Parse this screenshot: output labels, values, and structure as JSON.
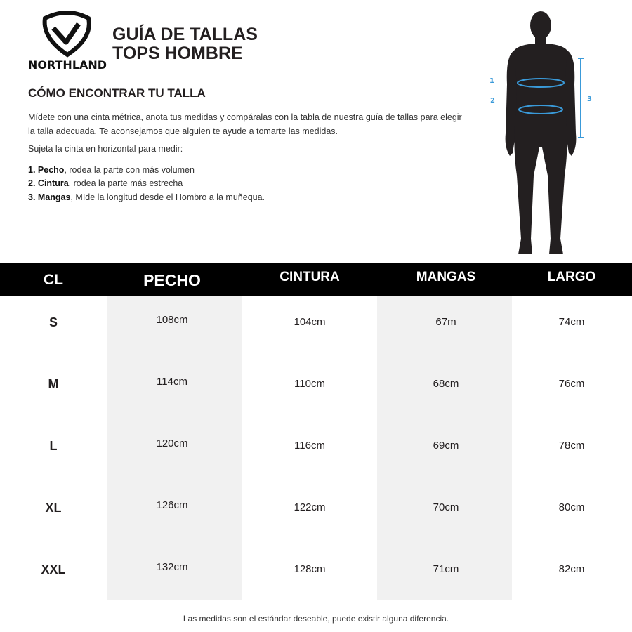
{
  "brand": {
    "logo_text": "NORTHLAND"
  },
  "header": {
    "title_line1": "GUÍA DE TALLAS",
    "title_line2": "TOPS HOMBRE"
  },
  "instructions": {
    "heading": "CÓMO ENCONTRAR TU TALLA",
    "paragraph": "Mídete con una cinta métrica, anota tus medidas y compáralas con la tabla de nuestra guía de tallas para elegir la talla adecuada. Te aconsejamos que alguien te ayude a tomarte las medidas.",
    "lead": "Sujeta la cinta en horizontal para medir:",
    "steps": [
      {
        "num": "1.",
        "term": "Pecho",
        "text": ", rodea la parte con más volumen"
      },
      {
        "num": "2.",
        "term": "Cintura",
        "text": ", rodea la parte más estrecha"
      },
      {
        "num": "3.",
        "term": "Mangas",
        "text": ", MIde la longitud desde el Hombro a la muñequa."
      }
    ]
  },
  "figure": {
    "labels": [
      "1",
      "2",
      "3"
    ],
    "accent": "#3a9ad9"
  },
  "table": {
    "headers": [
      "CL",
      "PECHO",
      "CINTURA",
      "MANGAS",
      "LARGO"
    ],
    "rows": [
      [
        "S",
        "108cm",
        "104cm",
        "67m",
        "74cm"
      ],
      [
        "M",
        "114cm",
        "110cm",
        "68cm",
        "76cm"
      ],
      [
        "L",
        "120cm",
        "116cm",
        "69cm",
        "78cm"
      ],
      [
        "XL",
        "126cm",
        "122cm",
        "70cm",
        "80cm"
      ],
      [
        "XXL",
        "132cm",
        "128cm",
        "71cm",
        "82cm"
      ]
    ]
  },
  "footer": "Las medidas son el estándar deseable, puede existir alguna diferencia."
}
